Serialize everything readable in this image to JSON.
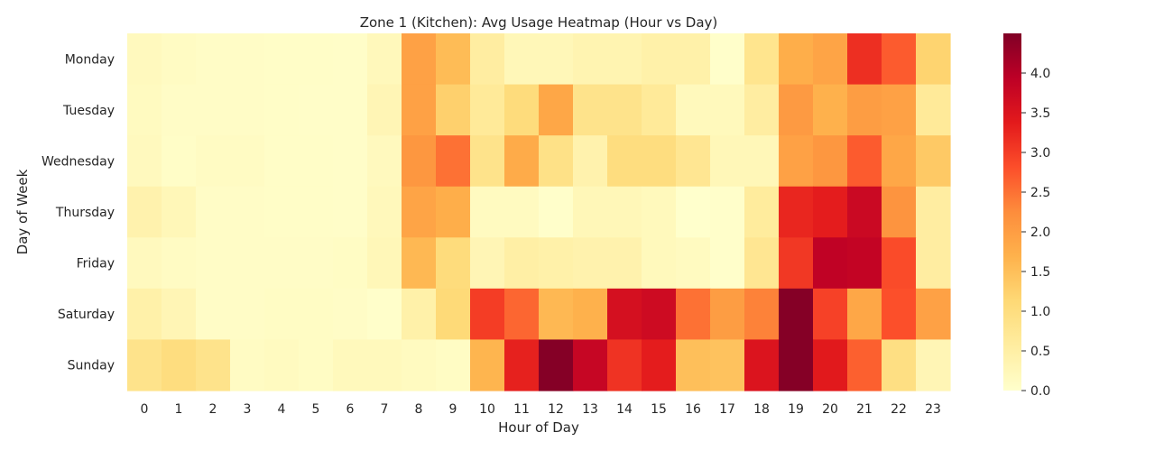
{
  "chart_data": {
    "type": "heatmap",
    "title": "Zone 1 (Kitchen): Avg Usage Heatmap (Hour vs Day)",
    "xlabel": "Hour of Day",
    "ylabel": "Day of Week",
    "x": [
      "0",
      "1",
      "2",
      "3",
      "4",
      "5",
      "6",
      "7",
      "8",
      "9",
      "10",
      "11",
      "12",
      "13",
      "14",
      "15",
      "16",
      "17",
      "18",
      "19",
      "20",
      "21",
      "22",
      "23"
    ],
    "y": [
      "Monday",
      "Tuesday",
      "Wednesday",
      "Thursday",
      "Friday",
      "Saturday",
      "Sunday"
    ],
    "values": [
      [
        0.18,
        0.12,
        0.08,
        0.08,
        0.06,
        0.06,
        0.05,
        0.22,
        1.95,
        1.55,
        0.55,
        0.25,
        0.25,
        0.35,
        0.35,
        0.45,
        0.45,
        0.02,
        0.8,
        1.75,
        1.9,
        3.15,
        2.7,
        1.2
      ],
      [
        0.15,
        0.08,
        0.08,
        0.08,
        0.06,
        0.05,
        0.05,
        0.3,
        1.95,
        1.25,
        0.65,
        1.05,
        1.85,
        0.85,
        0.85,
        0.65,
        0.2,
        0.2,
        0.55,
        2.05,
        1.7,
        2.0,
        1.95,
        0.65
      ],
      [
        0.18,
        0.06,
        0.12,
        0.12,
        0.06,
        0.06,
        0.05,
        0.18,
        2.1,
        2.5,
        0.85,
        1.8,
        0.9,
        0.4,
        1.0,
        1.0,
        0.75,
        0.25,
        0.25,
        1.95,
        2.1,
        2.7,
        1.85,
        1.35
      ],
      [
        0.4,
        0.25,
        0.08,
        0.08,
        0.06,
        0.06,
        0.05,
        0.22,
        1.9,
        1.75,
        0.15,
        0.15,
        0.02,
        0.25,
        0.25,
        0.2,
        0.0,
        0.02,
        0.6,
        3.25,
        3.35,
        3.75,
        2.15,
        0.55
      ],
      [
        0.18,
        0.12,
        0.08,
        0.08,
        0.08,
        0.08,
        0.1,
        0.25,
        1.6,
        1.05,
        0.3,
        0.5,
        0.45,
        0.4,
        0.4,
        0.2,
        0.15,
        0.02,
        0.75,
        3.05,
        3.9,
        3.85,
        2.85,
        0.55
      ],
      [
        0.45,
        0.3,
        0.08,
        0.08,
        0.1,
        0.1,
        0.08,
        0.02,
        0.45,
        1.1,
        3.0,
        2.6,
        1.6,
        1.7,
        3.6,
        3.7,
        2.5,
        2.0,
        2.35,
        4.45,
        2.95,
        1.85,
        2.8,
        1.95
      ],
      [
        0.85,
        1.0,
        0.85,
        0.12,
        0.15,
        0.1,
        0.2,
        0.2,
        0.15,
        0.1,
        1.65,
        3.3,
        4.45,
        3.8,
        3.1,
        3.35,
        1.5,
        1.45,
        3.5,
        4.45,
        3.4,
        2.65,
        0.95,
        0.3
      ]
    ],
    "vmin": 0.0,
    "vmax": 4.5,
    "colorbar_ticks": [
      "0.0",
      "0.5",
      "1.0",
      "1.5",
      "2.0",
      "2.5",
      "3.0",
      "3.5",
      "4.0"
    ],
    "colormap": [
      "#ffffcc",
      "#ffeda0",
      "#fed976",
      "#feb24c",
      "#fd8d3c",
      "#fc4e2a",
      "#e31a1c",
      "#bd0026",
      "#800026"
    ],
    "grid": false,
    "legend": "colorbar-right"
  }
}
